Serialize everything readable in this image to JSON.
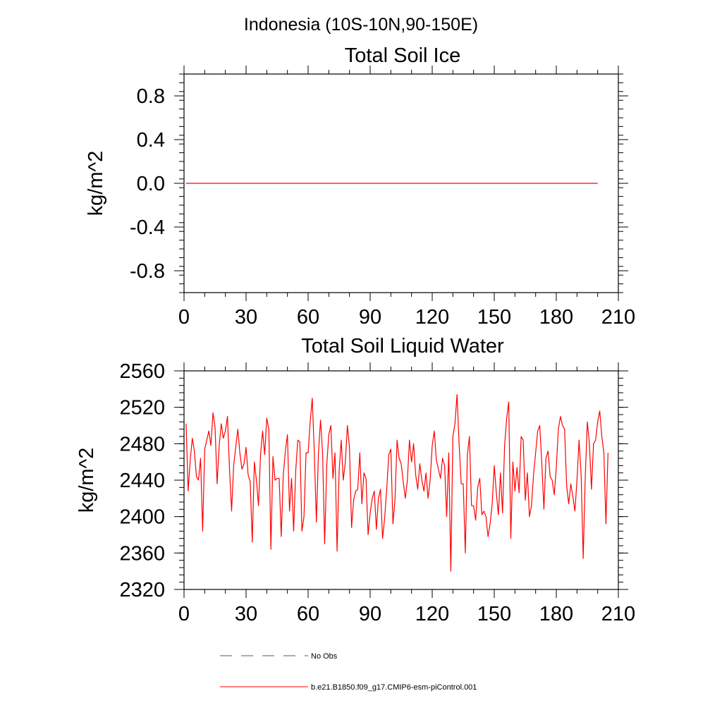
{
  "figure_title": "Indonesia (10S-10N,90-150E)",
  "chart_data": [
    {
      "type": "line",
      "title": "Total Soil Ice",
      "xlabel": "",
      "ylabel": "kg/m^2",
      "xlim": [
        0,
        210
      ],
      "ylim": [
        -1,
        1
      ],
      "xticks": [
        0,
        30,
        60,
        90,
        120,
        150,
        180,
        210
      ],
      "yticks": [
        -0.8,
        -0.4,
        0.0,
        0.4,
        0.8
      ],
      "ytick_labels": [
        "-0.8",
        "-0.4",
        "0.0",
        "0.4",
        "0.8"
      ],
      "grid": false,
      "series": [
        {
          "name": "b.e21.B1850.f09_g17.CMIP6-esm-piControl.001",
          "color": "#ff0000",
          "x_start": 1,
          "x_step": 1,
          "count": 200,
          "constant_value": 0.0
        }
      ]
    },
    {
      "type": "line",
      "title": "Total Soil Liquid Water",
      "xlabel": "",
      "ylabel": "kg/m^2",
      "xlim": [
        0,
        210
      ],
      "ylim": [
        2320,
        2560
      ],
      "xticks": [
        0,
        30,
        60,
        90,
        120,
        150,
        180,
        210
      ],
      "yticks": [
        2320,
        2360,
        2400,
        2440,
        2480,
        2520,
        2560
      ],
      "ytick_labels": [
        "2320",
        "2360",
        "2400",
        "2440",
        "2480",
        "2520",
        "2560"
      ],
      "grid": false,
      "series": [
        {
          "name": "b.e21.B1850.f09_g17.CMIP6-esm-piControl.001",
          "color": "#ff0000",
          "x_start": 1,
          "x_step": 1,
          "values": [
            2502,
            2428,
            2462,
            2486,
            2472,
            2444,
            2440,
            2464,
            2384,
            2474,
            2484,
            2494,
            2478,
            2514,
            2498,
            2436,
            2478,
            2502,
            2486,
            2494,
            2510,
            2452,
            2406,
            2456,
            2476,
            2496,
            2470,
            2452,
            2458,
            2476,
            2446,
            2438,
            2372,
            2460,
            2440,
            2412,
            2468,
            2494,
            2468,
            2508,
            2496,
            2364,
            2466,
            2440,
            2442,
            2442,
            2378,
            2446,
            2472,
            2490,
            2406,
            2442,
            2384,
            2450,
            2484,
            2482,
            2384,
            2400,
            2470,
            2470,
            2504,
            2530,
            2470,
            2394,
            2470,
            2506,
            2470,
            2370,
            2456,
            2490,
            2500,
            2442,
            2470,
            2362,
            2450,
            2484,
            2440,
            2460,
            2500,
            2476,
            2388,
            2418,
            2428,
            2430,
            2470,
            2414,
            2448,
            2442,
            2380,
            2404,
            2420,
            2428,
            2386,
            2420,
            2430,
            2376,
            2398,
            2430,
            2468,
            2474,
            2392,
            2418,
            2484,
            2464,
            2458,
            2438,
            2420,
            2440,
            2484,
            2460,
            2480,
            2446,
            2430,
            2458,
            2440,
            2428,
            2448,
            2420,
            2440,
            2478,
            2494,
            2462,
            2452,
            2442,
            2464,
            2456,
            2400,
            2470,
            2340,
            2488,
            2502,
            2534,
            2480,
            2436,
            2436,
            2360,
            2468,
            2488,
            2412,
            2412,
            2396,
            2432,
            2442,
            2402,
            2406,
            2400,
            2378,
            2392,
            2414,
            2456,
            2426,
            2402,
            2448,
            2404,
            2478,
            2508,
            2526,
            2376,
            2460,
            2428,
            2454,
            2426,
            2488,
            2484,
            2418,
            2448,
            2400,
            2412,
            2446,
            2470,
            2494,
            2500,
            2458,
            2408,
            2464,
            2472,
            2444,
            2440,
            2424,
            2454,
            2496,
            2510,
            2500,
            2496,
            2434,
            2414,
            2436,
            2422,
            2406,
            2440,
            2484,
            2446,
            2354,
            2444,
            2504,
            2480,
            2430,
            2480,
            2484,
            2504,
            2516,
            2488,
            2470,
            2392,
            2470
          ]
        }
      ]
    }
  ],
  "legend": [
    {
      "label": "No Obs",
      "style": "dashed",
      "color": "#4a5a8a"
    },
    {
      "label": "b.e21.B1850.f09_g17.CMIP6-esm-piControl.001",
      "style": "solid",
      "color": "#ff0000"
    }
  ]
}
